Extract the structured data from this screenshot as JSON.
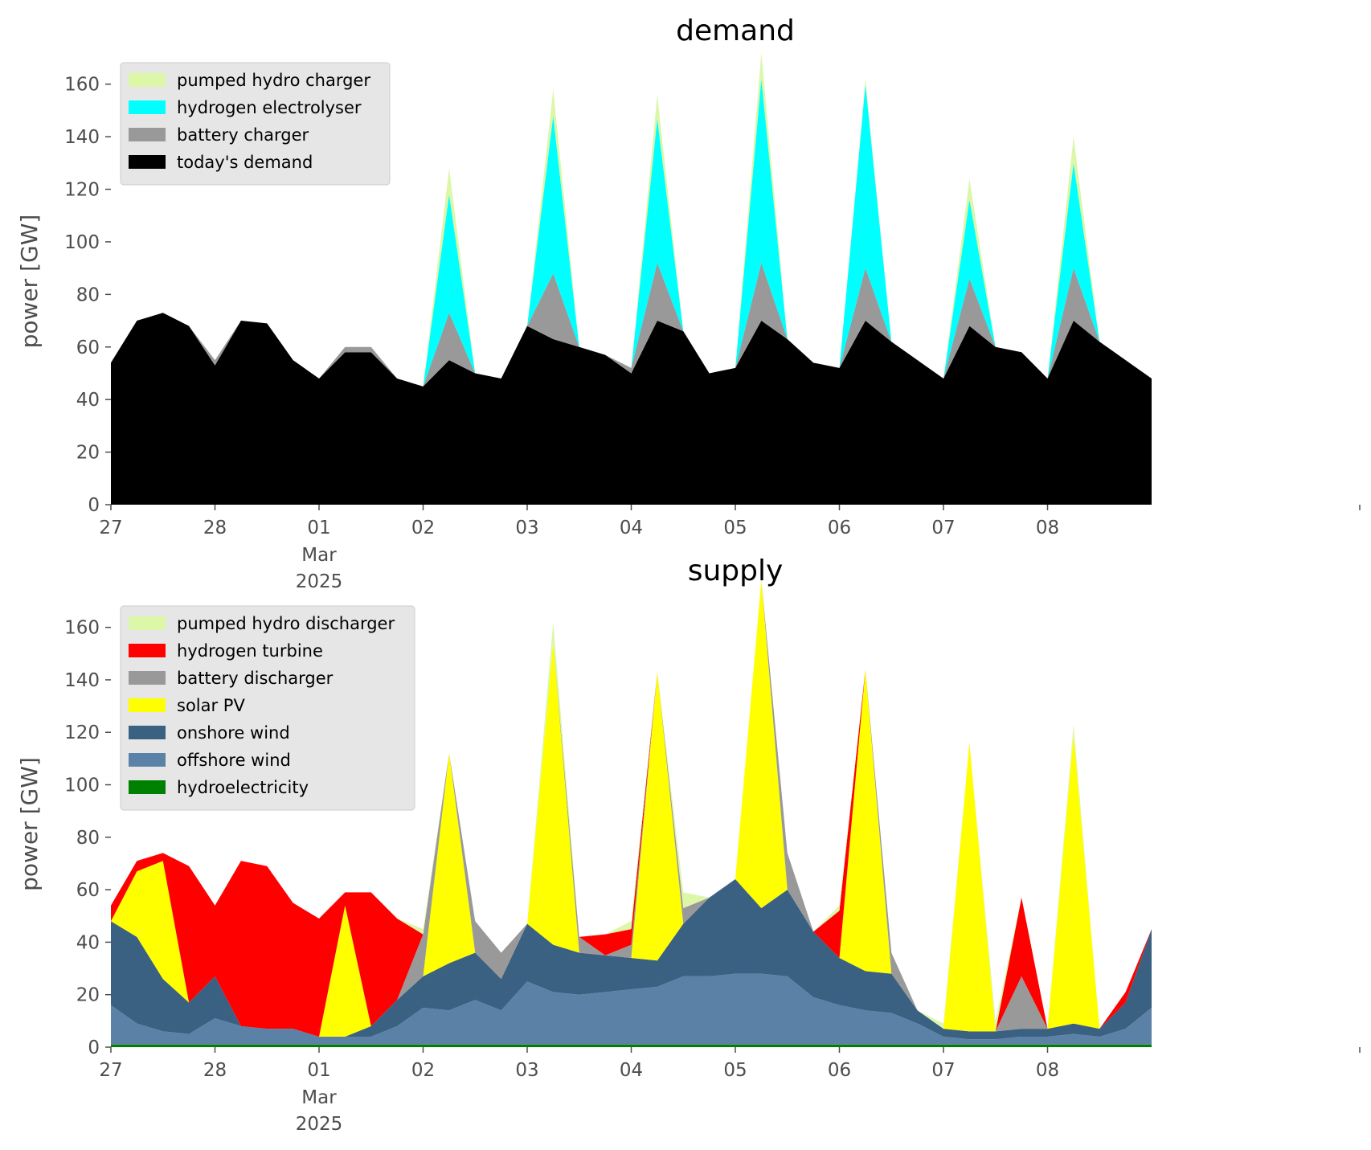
{
  "chart_data": [
    {
      "type": "area",
      "stacked": true,
      "title": "demand",
      "ylabel": "power [GW]",
      "xlabel": "",
      "ylim": [
        0,
        170
      ],
      "y_ticks": [
        0,
        20,
        40,
        60,
        80,
        100,
        120,
        140,
        160
      ],
      "x_range_days": [
        0,
        12
      ],
      "x_ticks": [
        {
          "day": 0,
          "label": "27"
        },
        {
          "day": 1,
          "label": "28"
        },
        {
          "day": 2,
          "label": "01",
          "label2": "Mar",
          "label3": "2025"
        },
        {
          "day": 3,
          "label": "02"
        },
        {
          "day": 4,
          "label": "03"
        },
        {
          "day": 5,
          "label": "04"
        },
        {
          "day": 6,
          "label": "05"
        },
        {
          "day": 7,
          "label": "06"
        },
        {
          "day": 8,
          "label": "07"
        },
        {
          "day": 9,
          "label": "08"
        }
      ],
      "legend_position": "top-left",
      "legend_order": [
        "pumped hydro charger",
        "hydrogen electrolyser",
        "battery charger",
        "today's demand"
      ],
      "x": [
        0,
        0.25,
        0.5,
        0.75,
        1,
        1.25,
        1.5,
        1.75,
        2,
        2.25,
        2.5,
        2.75,
        3,
        3.25,
        3.5,
        3.75,
        4,
        4.25,
        4.5,
        4.75,
        5,
        5.25,
        5.5,
        5.75,
        6,
        6.25,
        6.5,
        6.75,
        7,
        7.25,
        7.5,
        7.75,
        8,
        8.25,
        8.5,
        8.75,
        9,
        9.25,
        9.5,
        9.75,
        10
      ],
      "series": [
        {
          "name": "today's demand",
          "color": "#000000",
          "values": [
            54,
            70,
            73,
            68,
            53,
            70,
            69,
            55,
            48,
            58,
            58,
            48,
            45,
            55,
            50,
            48,
            68,
            63,
            60,
            57,
            50,
            70,
            66,
            50,
            52,
            70,
            63,
            54,
            52,
            70,
            62,
            55,
            48,
            68,
            60,
            58,
            48,
            70,
            62,
            55,
            48
          ]
        },
        {
          "name": "battery charger",
          "color": "#999999",
          "values": [
            0,
            0,
            0,
            0,
            2,
            0,
            0,
            0,
            0,
            2,
            2,
            0,
            0,
            18,
            0,
            0,
            0,
            25,
            0,
            0,
            2,
            22,
            0,
            0,
            0,
            22,
            0,
            0,
            0,
            20,
            0,
            0,
            0,
            18,
            0,
            0,
            0,
            20,
            0,
            0,
            0
          ]
        },
        {
          "name": "hydrogen electrolyser",
          "color": "#00ffff",
          "values": [
            0,
            0,
            0,
            0,
            0,
            0,
            0,
            0,
            0,
            0,
            0,
            0,
            0,
            45,
            0,
            0,
            0,
            60,
            0,
            0,
            0,
            55,
            0,
            0,
            0,
            70,
            0,
            0,
            0,
            70,
            0,
            0,
            0,
            30,
            0,
            0,
            0,
            40,
            0,
            0,
            0
          ]
        },
        {
          "name": "pumped hydro charger",
          "color": "#dcf7a8",
          "values": [
            0,
            0,
            0,
            0,
            0,
            0,
            0,
            0,
            0,
            0,
            0,
            0,
            0,
            10,
            0,
            0,
            0,
            10,
            0,
            0,
            0,
            9,
            0,
            0,
            0,
            10,
            0,
            0,
            0,
            2,
            0,
            0,
            0,
            8,
            0,
            0,
            0,
            10,
            0,
            0,
            0
          ]
        }
      ]
    },
    {
      "type": "area",
      "stacked": true,
      "title": "supply",
      "ylabel": "power [GW]",
      "xlabel": "",
      "ylim": [
        0,
        170
      ],
      "y_ticks": [
        0,
        20,
        40,
        60,
        80,
        100,
        120,
        140,
        160
      ],
      "x_range_days": [
        0,
        12
      ],
      "x_ticks": [
        {
          "day": 0,
          "label": "27"
        },
        {
          "day": 1,
          "label": "28"
        },
        {
          "day": 2,
          "label": "01",
          "label2": "Mar",
          "label3": "2025"
        },
        {
          "day": 3,
          "label": "02"
        },
        {
          "day": 4,
          "label": "03"
        },
        {
          "day": 5,
          "label": "04"
        },
        {
          "day": 6,
          "label": "05"
        },
        {
          "day": 7,
          "label": "06"
        },
        {
          "day": 8,
          "label": "07"
        },
        {
          "day": 9,
          "label": "08"
        }
      ],
      "legend_position": "top-left",
      "legend_order": [
        "pumped hydro discharger",
        "hydrogen turbine",
        "battery discharger",
        "solar PV",
        "onshore wind",
        "offshore wind",
        "hydroelectricity"
      ],
      "x": [
        0,
        0.25,
        0.5,
        0.75,
        1,
        1.25,
        1.5,
        1.75,
        2,
        2.25,
        2.5,
        2.75,
        3,
        3.25,
        3.5,
        3.75,
        4,
        4.25,
        4.5,
        4.75,
        5,
        5.25,
        5.5,
        5.75,
        6,
        6.25,
        6.5,
        6.75,
        7,
        7.25,
        7.5,
        7.75,
        8,
        8.25,
        8.5,
        8.75,
        9,
        9.25,
        9.5,
        9.75,
        10
      ],
      "series": [
        {
          "name": "hydroelectricity",
          "color": "#008000",
          "values": [
            1,
            1,
            1,
            1,
            1,
            1,
            1,
            1,
            1,
            1,
            1,
            1,
            1,
            1,
            1,
            1,
            1,
            1,
            1,
            1,
            1,
            1,
            1,
            1,
            1,
            1,
            1,
            1,
            1,
            1,
            1,
            1,
            1,
            1,
            1,
            1,
            1,
            1,
            1,
            1,
            1
          ]
        },
        {
          "name": "offshore wind",
          "color": "#5b82a6",
          "values": [
            15,
            8,
            5,
            4,
            10,
            7,
            6,
            6,
            3,
            3,
            3,
            7,
            14,
            13,
            17,
            13,
            24,
            20,
            19,
            20,
            21,
            22,
            26,
            26,
            27,
            27,
            26,
            18,
            15,
            13,
            12,
            8,
            3,
            2,
            2,
            3,
            3,
            4,
            3,
            6,
            14
          ]
        },
        {
          "name": "onshore wind",
          "color": "#3b6182",
          "values": [
            32,
            33,
            20,
            12,
            16,
            0,
            0,
            0,
            0,
            0,
            4,
            10,
            12,
            18,
            18,
            12,
            22,
            18,
            16,
            14,
            12,
            10,
            20,
            30,
            36,
            25,
            33,
            25,
            18,
            15,
            15,
            5,
            3,
            3,
            3,
            3,
            3,
            4,
            3,
            10,
            30
          ]
        },
        {
          "name": "solar PV",
          "color": "#ffff00",
          "values": [
            0,
            25,
            45,
            0,
            0,
            0,
            0,
            0,
            0,
            50,
            0,
            0,
            0,
            80,
            0,
            0,
            0,
            115,
            0,
            0,
            0,
            110,
            0,
            0,
            0,
            125,
            0,
            0,
            0,
            115,
            0,
            0,
            0,
            110,
            0,
            0,
            0,
            110,
            0,
            0,
            0
          ]
        },
        {
          "name": "battery discharger",
          "color": "#999999",
          "values": [
            0,
            0,
            0,
            0,
            0,
            0,
            0,
            0,
            0,
            0,
            0,
            0,
            16,
            0,
            12,
            10,
            0,
            0,
            6,
            0,
            5,
            0,
            6,
            0,
            0,
            0,
            14,
            0,
            0,
            0,
            8,
            0,
            0,
            0,
            0,
            20,
            0,
            0,
            0,
            0,
            0
          ]
        },
        {
          "name": "hydrogen turbine",
          "color": "#ff0000",
          "values": [
            6,
            4,
            3,
            52,
            27,
            63,
            62,
            48,
            45,
            5,
            51,
            31,
            0,
            0,
            0,
            0,
            0,
            0,
            0,
            8,
            6,
            0,
            0,
            0,
            0,
            0,
            0,
            0,
            18,
            0,
            0,
            0,
            0,
            0,
            0,
            30,
            0,
            0,
            0,
            4,
            0
          ]
        },
        {
          "name": "pumped hydro discharger",
          "color": "#dcf7a8",
          "values": [
            0,
            0,
            0,
            0,
            0,
            0,
            0,
            0,
            0,
            0,
            0,
            0,
            2,
            0,
            0,
            0,
            0,
            8,
            0,
            0,
            3,
            0,
            6,
            0,
            0,
            0,
            0,
            0,
            2,
            0,
            0,
            0,
            2,
            0,
            4,
            0,
            0,
            4,
            0,
            0,
            0
          ]
        }
      ]
    }
  ]
}
